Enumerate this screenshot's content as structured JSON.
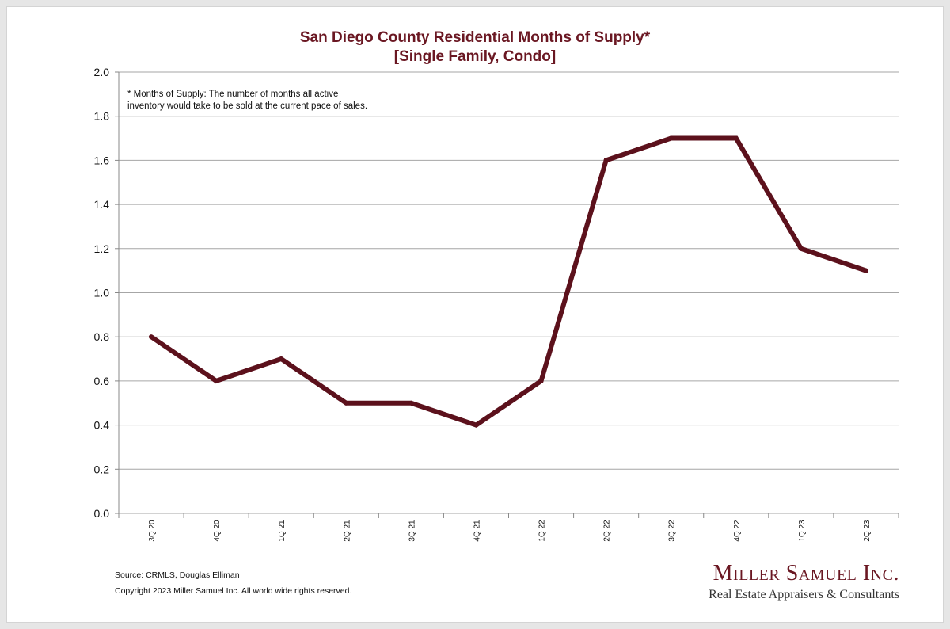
{
  "chart_data": {
    "type": "line",
    "title_line1": "San Diego County Residential Months of Supply*",
    "title_line2": "[Single Family, Condo]",
    "categories": [
      "3Q 20",
      "4Q 20",
      "1Q 21",
      "2Q 21",
      "3Q 21",
      "4Q 21",
      "1Q 22",
      "2Q 22",
      "3Q 22",
      "4Q 22",
      "1Q 23",
      "2Q 23"
    ],
    "values": [
      0.8,
      0.6,
      0.7,
      0.5,
      0.5,
      0.4,
      0.6,
      1.6,
      1.7,
      1.7,
      1.2,
      1.1
    ],
    "ylim": [
      0,
      2.0
    ],
    "yticks": [
      "0.0",
      "0.2",
      "0.4",
      "0.6",
      "0.8",
      "1.0",
      "1.2",
      "1.4",
      "1.6",
      "1.8",
      "2.0"
    ],
    "grid": true,
    "line_color": "#5c111c",
    "note_line1": "* Months of Supply: The number of months all active",
    "note_line2": "inventory would take to be sold at the current pace of sales."
  },
  "footer": {
    "source": "Source: CRMLS, Douglas Elliman",
    "copyright": "Copyright 2023 Miller Samuel Inc.  All world wide rights reserved."
  },
  "logo": {
    "name": "Miller Samuel Inc.",
    "tagline": "Real Estate Appraisers & Consultants"
  }
}
